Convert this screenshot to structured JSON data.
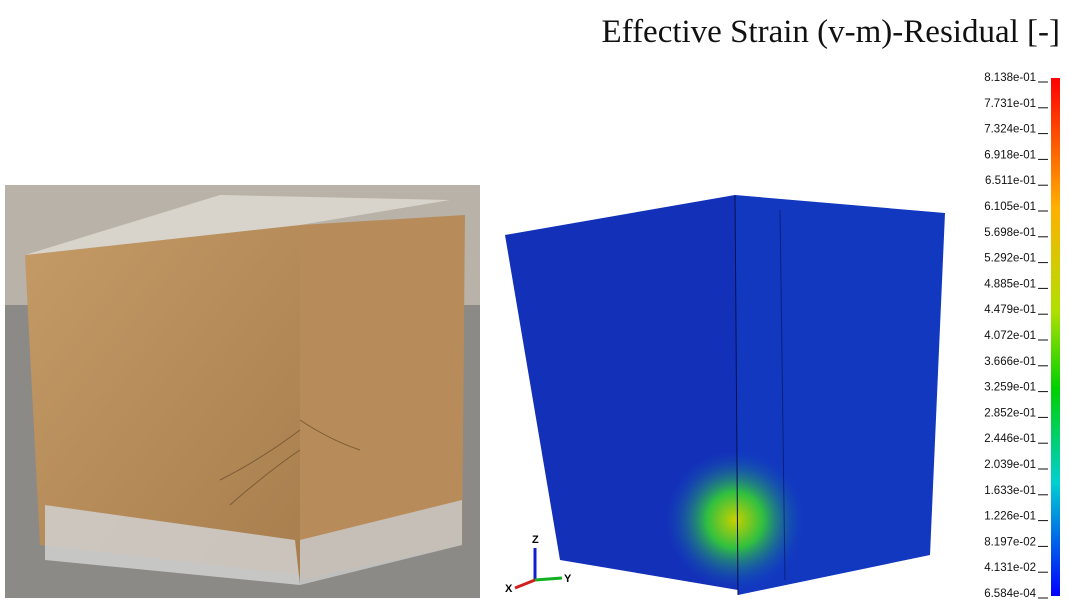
{
  "colorbar": {
    "title": "Effective Strain (v-m)-Residual [-]",
    "labels": [
      "8.138e-01",
      "7.731e-01",
      "7.324e-01",
      "6.918e-01",
      "6.511e-01",
      "6.105e-01",
      "5.698e-01",
      "5.292e-01",
      "4.885e-01",
      "4.479e-01",
      "4.072e-01",
      "3.666e-01",
      "3.259e-01",
      "2.852e-01",
      "2.446e-01",
      "2.039e-01",
      "1.633e-01",
      "1.226e-01",
      "8.197e-02",
      "4.131e-02",
      "6.584e-04"
    ]
  },
  "triad": {
    "z": "Z",
    "y": "Y",
    "x": "X"
  }
}
